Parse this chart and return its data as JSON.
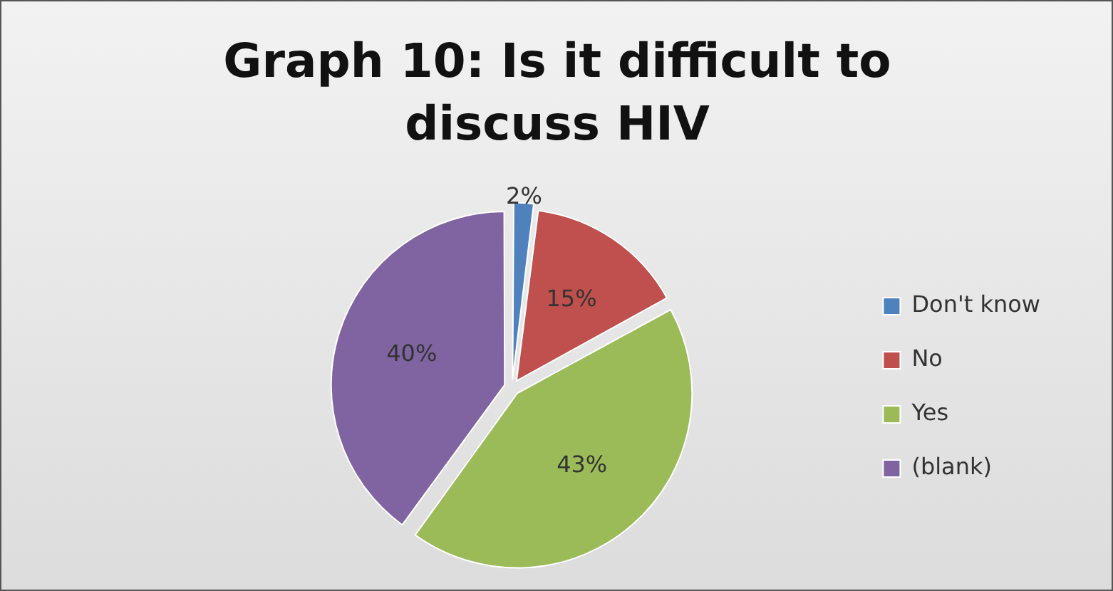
{
  "chart_data": {
    "type": "pie",
    "title": "Graph 10: Is it difficult to discuss HIV",
    "categories": [
      "Don't know",
      "No",
      "Yes",
      "(blank)"
    ],
    "values": [
      2,
      15,
      43,
      40
    ],
    "colors": [
      "#4f81bd",
      "#c0504d",
      "#9bbb59",
      "#8064a2"
    ],
    "value_labels": [
      "2%",
      "15%",
      "43%",
      "40%"
    ],
    "legend": "right"
  }
}
